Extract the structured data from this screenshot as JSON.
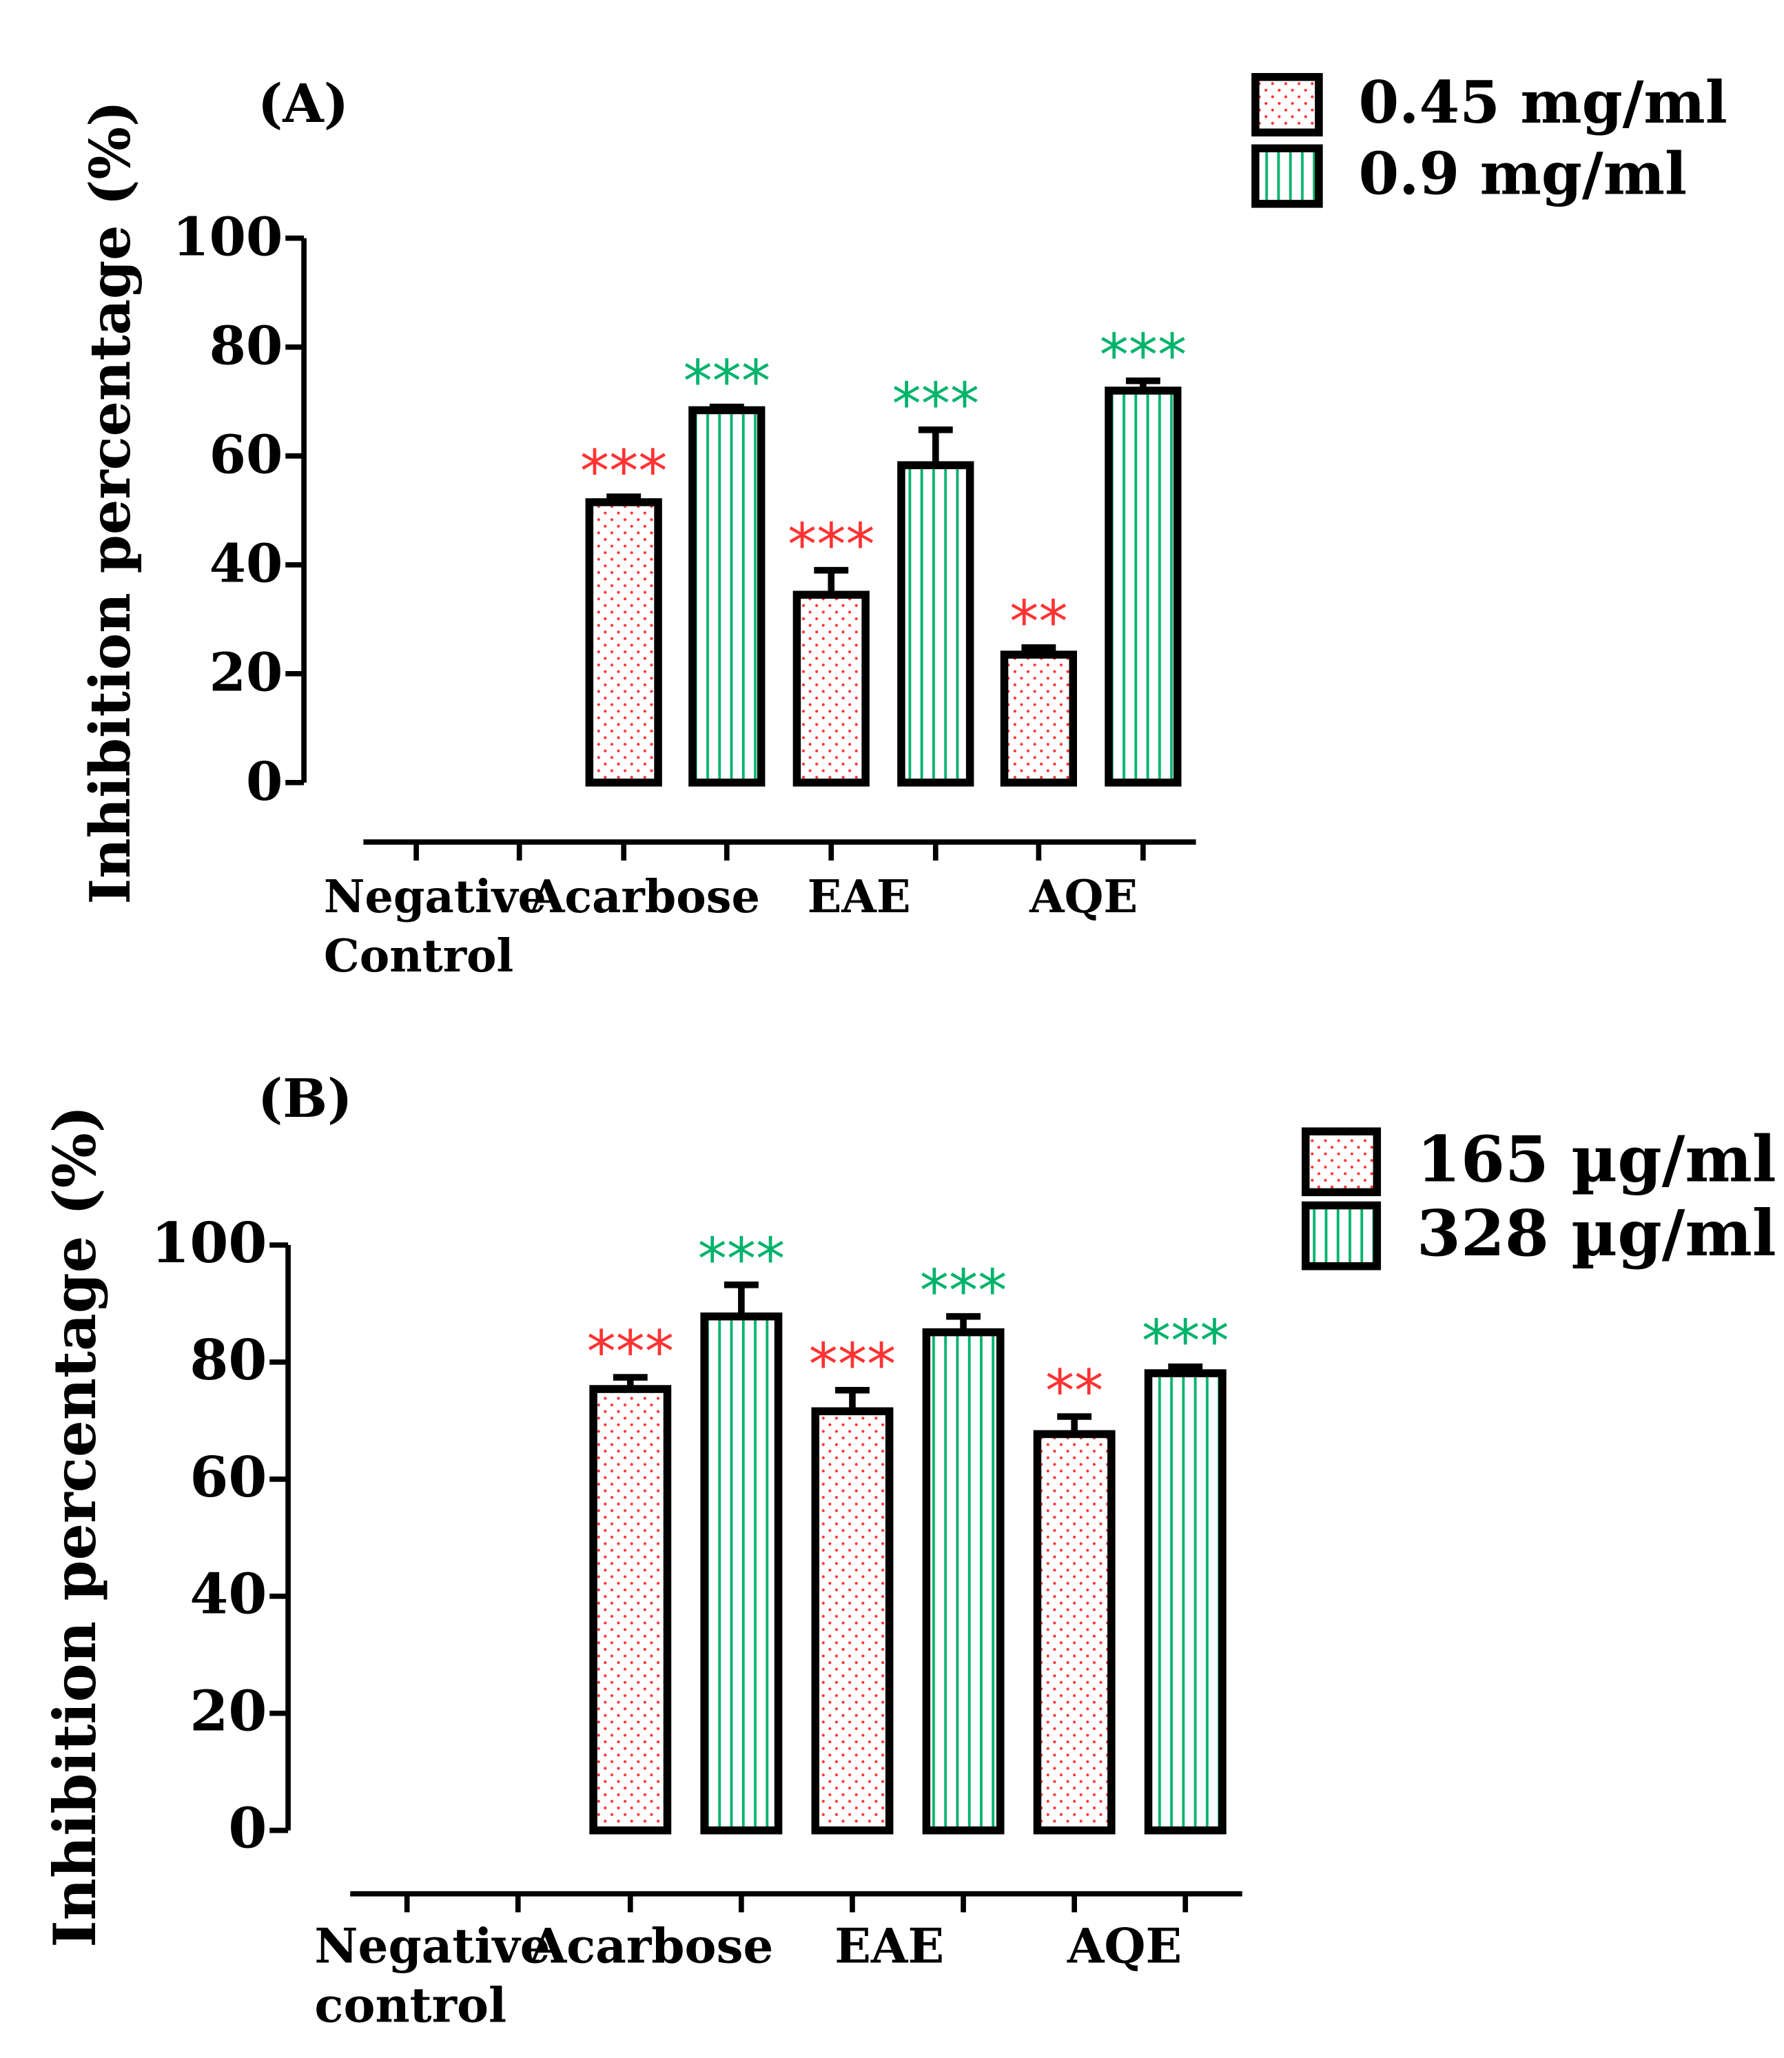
{
  "chart_data": [
    {
      "type": "bar",
      "panel_label": "(A)",
      "ylabel": "Inhibition percentage (%)",
      "ylim": [
        0,
        100
      ],
      "yticks": [
        "0",
        "20",
        "40",
        "60",
        "80",
        "100"
      ],
      "categories": [
        "Negative|Control",
        "Acarbose",
        "EAE",
        "AQE"
      ],
      "series": [
        {
          "name": "0.45 mg/ml",
          "pattern": "dots",
          "color": "#ff3333",
          "values": [
            null,
            51.5,
            34.5,
            23.5
          ],
          "errors": [
            null,
            1.0,
            4.5,
            1.3
          ],
          "significance": [
            "",
            "***",
            "***",
            "**"
          ]
        },
        {
          "name": "0.9 mg/ml",
          "pattern": "vertical-lines",
          "color": "#00b36b",
          "values": [
            null,
            68.4,
            58.3,
            72.0
          ],
          "errors": [
            null,
            0.6,
            6.5,
            1.8
          ],
          "significance": [
            "",
            "***",
            "***",
            "***"
          ]
        }
      ],
      "legend": "top-right"
    },
    {
      "type": "bar",
      "panel_label": "(B)",
      "ylabel": "Inhibition percentage (%)",
      "ylim": [
        0,
        100
      ],
      "yticks": [
        "0",
        "20",
        "40",
        "60",
        "80",
        "100"
      ],
      "categories": [
        "Negative|control",
        "Acarbose",
        "EAE",
        "AQE"
      ],
      "series": [
        {
          "name": "165 µg/ml",
          "pattern": "dots",
          "color": "#ff3333",
          "values": [
            null,
            75.4,
            71.6,
            67.7
          ],
          "errors": [
            null,
            2.0,
            3.6,
            3.0
          ],
          "significance": [
            "",
            "***",
            "***",
            "**"
          ]
        },
        {
          "name": "328 µg/ml",
          "pattern": "vertical-lines",
          "color": "#00b36b",
          "values": [
            null,
            87.8,
            85.1,
            78.1
          ],
          "errors": [
            null,
            5.4,
            2.7,
            1.1
          ],
          "significance": [
            "",
            "***",
            "***",
            "***"
          ]
        }
      ],
      "legend": "top-right"
    }
  ]
}
